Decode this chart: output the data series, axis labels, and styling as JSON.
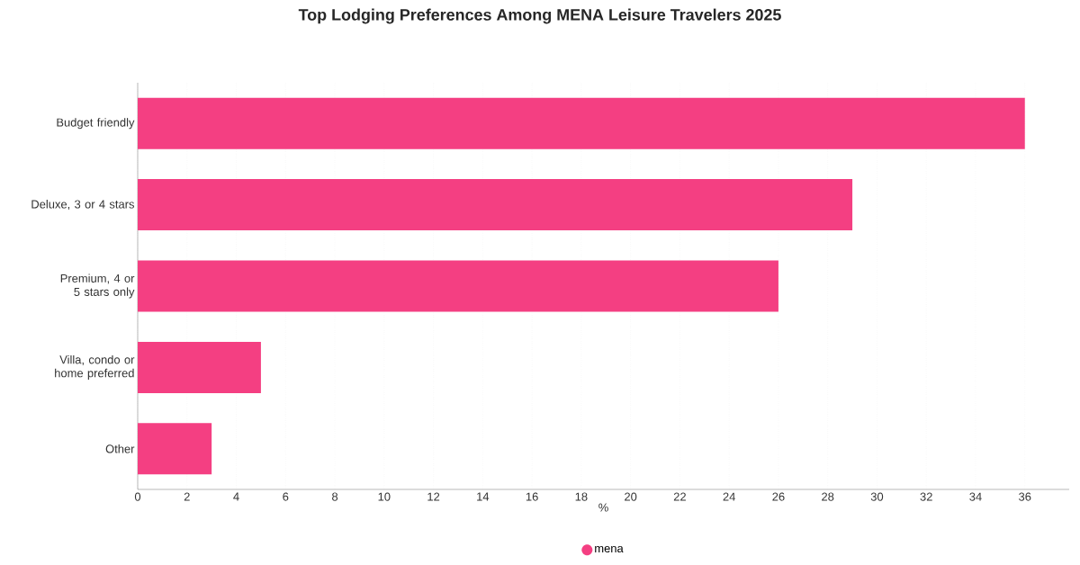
{
  "chart_data": {
    "type": "bar",
    "orientation": "horizontal",
    "title": "Top Lodging Preferences Among MENA Leisure Travelers 2025",
    "categories": [
      "Budget friendly",
      "Deluxe, 3 or 4 stars",
      "Premium, 4 or 5 stars only",
      "Villa, condo or home preferred",
      "Other"
    ],
    "series": [
      {
        "name": "mena",
        "color": "#f43f82",
        "values": [
          36,
          29,
          26,
          5,
          3
        ]
      }
    ],
    "xlabel": "%",
    "xlim": [
      0,
      37.8
    ],
    "xticks": [
      0,
      2,
      4,
      6,
      8,
      10,
      12,
      14,
      16,
      18,
      20,
      22,
      24,
      26,
      28,
      30,
      32,
      34,
      36
    ],
    "grid": "x",
    "legend": "bottom"
  }
}
